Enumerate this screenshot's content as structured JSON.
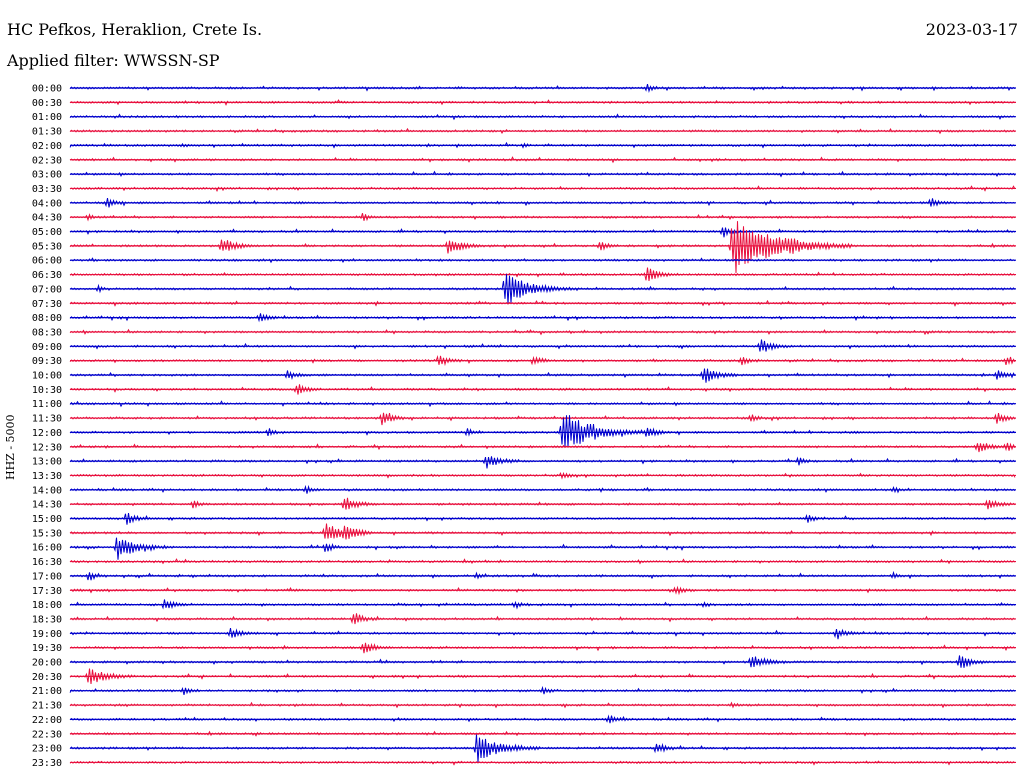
{
  "header": {
    "station": "HC Pefkos, Heraklion, Crete Is.",
    "date": "2023-03-17",
    "filter": "Applied filter: WWSSN-SP",
    "channel": "HHZ - 5000"
  },
  "colors": {
    "even_trace": "#0000cc",
    "odd_trace": "#e8103e",
    "background": "#ffffff"
  },
  "chart_data": {
    "type": "line",
    "title": "HC Pefkos, Heraklion, Crete Is.",
    "subtitle": "Applied filter: WWSSN-SP",
    "ylabel": "HHZ - 5000",
    "xlabel": "",
    "y_tick_labels": [
      "00:00",
      "00:30",
      "01:00",
      "01:30",
      "02:00",
      "02:30",
      "03:00",
      "03:30",
      "04:00",
      "04:30",
      "05:00",
      "05:30",
      "06:00",
      "06:30",
      "07:00",
      "07:30",
      "08:00",
      "08:30",
      "09:00",
      "09:30",
      "10:00",
      "10:30",
      "11:00",
      "11:30",
      "12:00",
      "12:30",
      "13:00",
      "13:30",
      "14:00",
      "14:30",
      "15:00",
      "15:30",
      "16:00",
      "16:30",
      "17:00",
      "17:30",
      "18:00",
      "18:30",
      "19:00",
      "19:30",
      "20:00",
      "20:30",
      "21:00",
      "21:30",
      "22:00",
      "22:30",
      "23:00",
      "23:30"
    ],
    "row_minutes": 30,
    "grid": false,
    "events": [
      {
        "t": "00:00",
        "x": 0.61,
        "amp": 4
      },
      {
        "t": "02:00",
        "x": 0.12,
        "amp": 2
      },
      {
        "t": "02:00",
        "x": 0.48,
        "amp": 2
      },
      {
        "t": "04:00",
        "x": 0.04,
        "amp": 5
      },
      {
        "t": "04:00",
        "x": 0.91,
        "amp": 5
      },
      {
        "t": "04:30",
        "x": 0.02,
        "amp": 3
      },
      {
        "t": "04:30",
        "x": 0.31,
        "amp": 4
      },
      {
        "t": "05:00",
        "x": 0.69,
        "amp": 6
      },
      {
        "t": "05:30",
        "x": 0.16,
        "amp": 9
      },
      {
        "t": "05:30",
        "x": 0.4,
        "amp": 9
      },
      {
        "t": "05:30",
        "x": 0.56,
        "amp": 5
      },
      {
        "t": "05:30",
        "x": 0.7,
        "amp": 30
      },
      {
        "t": "05:30",
        "x": 0.76,
        "amp": 4
      },
      {
        "t": "06:30",
        "x": 0.61,
        "amp": 8
      },
      {
        "t": "07:00",
        "x": 0.46,
        "amp": 18
      },
      {
        "t": "07:00",
        "x": 0.03,
        "amp": 3
      },
      {
        "t": "08:00",
        "x": 0.2,
        "amp": 5
      },
      {
        "t": "09:00",
        "x": 0.73,
        "amp": 8
      },
      {
        "t": "09:30",
        "x": 0.39,
        "amp": 6
      },
      {
        "t": "09:30",
        "x": 0.49,
        "amp": 5
      },
      {
        "t": "09:30",
        "x": 0.71,
        "amp": 5
      },
      {
        "t": "09:30",
        "x": 0.99,
        "amp": 5
      },
      {
        "t": "10:00",
        "x": 0.23,
        "amp": 5
      },
      {
        "t": "10:00",
        "x": 0.67,
        "amp": 9
      },
      {
        "t": "10:00",
        "x": 0.98,
        "amp": 6
      },
      {
        "t": "10:30",
        "x": 0.24,
        "amp": 6
      },
      {
        "t": "11:30",
        "x": 0.33,
        "amp": 7
      },
      {
        "t": "11:30",
        "x": 0.72,
        "amp": 4
      },
      {
        "t": "11:30",
        "x": 0.98,
        "amp": 6
      },
      {
        "t": "12:00",
        "x": 0.52,
        "amp": 22
      },
      {
        "t": "12:00",
        "x": 0.21,
        "amp": 4
      },
      {
        "t": "12:00",
        "x": 0.42,
        "amp": 4
      },
      {
        "t": "12:00",
        "x": 0.61,
        "amp": 6
      },
      {
        "t": "12:30",
        "x": 0.96,
        "amp": 7
      },
      {
        "t": "12:30",
        "x": 0.99,
        "amp": 5
      },
      {
        "t": "13:00",
        "x": 0.44,
        "amp": 8
      },
      {
        "t": "13:00",
        "x": 0.77,
        "amp": 4
      },
      {
        "t": "13:30",
        "x": 0.52,
        "amp": 4
      },
      {
        "t": "14:00",
        "x": 0.25,
        "amp": 4
      },
      {
        "t": "14:00",
        "x": 0.87,
        "amp": 3
      },
      {
        "t": "14:30",
        "x": 0.13,
        "amp": 4
      },
      {
        "t": "14:30",
        "x": 0.29,
        "amp": 8
      },
      {
        "t": "14:30",
        "x": 0.97,
        "amp": 6
      },
      {
        "t": "15:00",
        "x": 0.06,
        "amp": 6
      },
      {
        "t": "15:00",
        "x": 0.78,
        "amp": 4
      },
      {
        "t": "15:30",
        "x": 0.27,
        "amp": 11
      },
      {
        "t": "15:30",
        "x": 0.29,
        "amp": 8
      },
      {
        "t": "16:00",
        "x": 0.05,
        "amp": 13
      },
      {
        "t": "16:00",
        "x": 0.27,
        "amp": 5
      },
      {
        "t": "17:00",
        "x": 0.02,
        "amp": 5
      },
      {
        "t": "17:00",
        "x": 0.43,
        "amp": 3
      },
      {
        "t": "17:00",
        "x": 0.87,
        "amp": 3
      },
      {
        "t": "17:30",
        "x": 0.64,
        "amp": 5
      },
      {
        "t": "18:00",
        "x": 0.1,
        "amp": 6
      },
      {
        "t": "18:00",
        "x": 0.47,
        "amp": 4
      },
      {
        "t": "18:00",
        "x": 0.67,
        "amp": 3
      },
      {
        "t": "18:30",
        "x": 0.3,
        "amp": 7
      },
      {
        "t": "19:00",
        "x": 0.17,
        "amp": 6
      },
      {
        "t": "19:00",
        "x": 0.81,
        "amp": 6
      },
      {
        "t": "19:30",
        "x": 0.31,
        "amp": 7
      },
      {
        "t": "20:00",
        "x": 0.72,
        "amp": 9
      },
      {
        "t": "20:00",
        "x": 0.94,
        "amp": 8
      },
      {
        "t": "20:30",
        "x": 0.02,
        "amp": 11
      },
      {
        "t": "21:00",
        "x": 0.12,
        "amp": 4
      },
      {
        "t": "21:00",
        "x": 0.5,
        "amp": 4
      },
      {
        "t": "21:30",
        "x": 0.7,
        "amp": 3
      },
      {
        "t": "22:00",
        "x": 0.57,
        "amp": 5
      },
      {
        "t": "23:00",
        "x": 0.43,
        "amp": 16
      },
      {
        "t": "23:00",
        "x": 0.62,
        "amp": 6
      }
    ]
  }
}
